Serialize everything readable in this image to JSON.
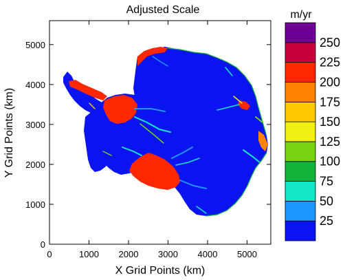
{
  "figure": {
    "title": "Adjusted Scale",
    "xlabel": "X Grid Points (km)",
    "ylabel": "Y Grid Points (km)",
    "colorbar_units": "m/yr"
  },
  "chart_data": {
    "type": "heatmap",
    "title": "Adjusted Scale",
    "xlabel": "X Grid Points (km)",
    "ylabel": "Y Grid Points (km)",
    "xlim": [
      0,
      5600
    ],
    "ylim": [
      0,
      5600
    ],
    "x_ticks": [
      0,
      1000,
      2000,
      3000,
      4000,
      5000
    ],
    "y_ticks": [
      0,
      1000,
      2000,
      3000,
      4000,
      5000
    ],
    "colorbar": {
      "units": "m/yr",
      "levels": [
        25,
        50,
        75,
        100,
        125,
        150,
        175,
        200,
        225,
        250
      ],
      "colors": [
        "#0a14f0",
        "#1e96ff",
        "#14e6c8",
        "#14b43c",
        "#78d214",
        "#f0f014",
        "#ffc800",
        "#ff8200",
        "#ff2800",
        "#c8003c",
        "#6e0096"
      ]
    },
    "legend": "right",
    "grid": false,
    "land_color": "#0a14f0",
    "fast_flow_color": "#ff2800"
  }
}
